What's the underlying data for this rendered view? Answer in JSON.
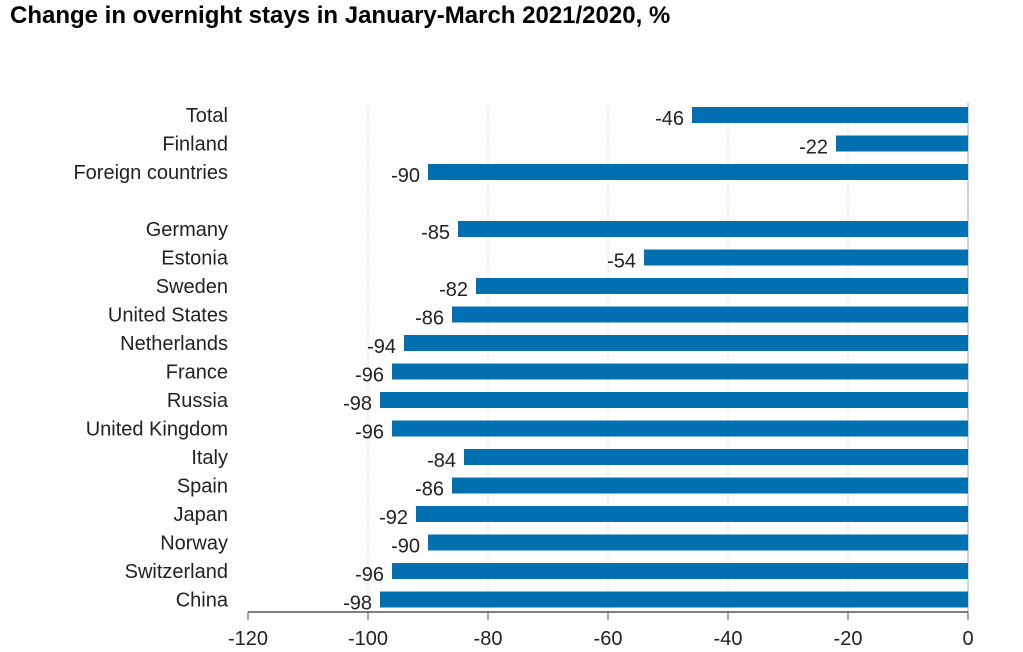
{
  "chart_data": {
    "type": "bar",
    "orientation": "horizontal",
    "title": "Change in overnight stays in January-March 2021/2020, %",
    "categories": [
      "Total",
      "Finland",
      "Foreign countries",
      "Germany",
      "Estonia",
      "Sweden",
      "United States",
      "Netherlands",
      "France",
      "Russia",
      "United Kingdom",
      "Italy",
      "Spain",
      "Japan",
      "Norway",
      "Switzerland",
      "China"
    ],
    "values": [
      -46,
      -22,
      -90,
      -85,
      -54,
      -82,
      -86,
      -94,
      -96,
      -98,
      -96,
      -84,
      -86,
      -92,
      -90,
      -96,
      -98
    ],
    "xlim": [
      -120,
      0
    ],
    "xticks": [
      -120,
      -100,
      -80,
      -60,
      -40,
      -20,
      0
    ],
    "grid": true,
    "bar_color": "#0070b0",
    "data_labels": true
  }
}
